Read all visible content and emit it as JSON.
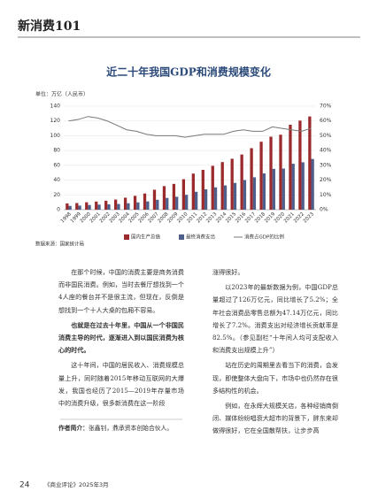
{
  "header": {
    "title": "新消费101"
  },
  "chart_data": {
    "type": "bar",
    "title": "近二十年我国GDP和消费规模变化",
    "y_label": "单位：万亿（人民币）",
    "categories": [
      "1998",
      "1999",
      "2000",
      "2001",
      "2002",
      "2003",
      "2004",
      "2005",
      "2006",
      "2007",
      "2008",
      "2009",
      "2010",
      "2011",
      "2012",
      "2013",
      "2014",
      "2015",
      "2016",
      "2017",
      "2018",
      "2019",
      "2020",
      "2021",
      "2022",
      "2023"
    ],
    "series": [
      {
        "name": "国内生产总值",
        "color": "#9b2a2c",
        "values": [
          8.5,
          9.0,
          10.0,
          11.0,
          12.1,
          13.7,
          16.2,
          18.7,
          21.9,
          27.0,
          31.9,
          34.9,
          41.2,
          48.8,
          53.9,
          59.3,
          64.4,
          68.9,
          74.6,
          83.2,
          91.9,
          98.7,
          101.4,
          114.9,
          120.5,
          126.1
        ]
      },
      {
        "name": "最终消费支出",
        "color": "#4e5f8c",
        "values": [
          5.1,
          5.5,
          6.3,
          6.8,
          7.2,
          7.7,
          8.7,
          9.9,
          11.2,
          13.4,
          15.9,
          17.5,
          20.1,
          24.2,
          27.5,
          30.2,
          32.8,
          36.2,
          40.1,
          43.8,
          49.1,
          55.2,
          55.6,
          62.1,
          64.1,
          68.6
        ]
      },
      {
        "name": "消费占GDP的比例",
        "color": "#777777",
        "axis": "y2",
        "values": [
          60,
          61,
          63,
          62,
          60,
          57,
          54,
          53,
          51,
          50,
          50,
          50,
          49,
          50,
          51,
          51,
          51,
          53,
          54,
          53,
          53,
          56,
          55,
          54,
          53,
          55
        ]
      }
    ],
    "ylim": [
      0,
      140
    ],
    "yticks": [
      0,
      20,
      40,
      60,
      80,
      100,
      120,
      140
    ],
    "y2lim": [
      0,
      70
    ],
    "y2ticks": [
      {
        "value": 0,
        "label": "0%"
      },
      {
        "value": 10,
        "label": "10%"
      },
      {
        "value": 20,
        "label": "20%"
      },
      {
        "value": 30,
        "label": "30%"
      },
      {
        "value": 40,
        "label": "40%"
      },
      {
        "value": 50,
        "label": "50%"
      },
      {
        "value": 60,
        "label": "60%"
      },
      {
        "value": 70,
        "label": "70%"
      }
    ],
    "source": "数据来源：国家统计局"
  },
  "article": {
    "left": [
      "在那个时候，中国的消费主要是商务消费而非国民消费。例如，当时去餐厅想找到一个4人座的餐台并不是很主流，但现在，反倒是想找到一个十人大桌的包厢不容易。",
      "也就是在过去十年里，中国从一个非国民消费主导的时代，逐渐进入到以国民消费为核心的时代。",
      "这十年间，中国的居民收入、消费规模总量上升，同时随着2015年移动互联网的大爆发，我国也经历了2015—2019年存量市场中的消费升级，很多新消费在这一阶段"
    ],
    "author_label": "作者简介：",
    "author": "张鑫钊，鼎承资本创始合伙人。",
    "right": [
      "涨得很好。",
      "以2023年的最新数据为例，中国GDP总量超过了126万亿元，同比增长了5.2%；全年社会消费品零售总额为47.14万亿元，同比增长了7.2%。消费支出对经济增长贡献率是82.5%。（参见副栏“十年间人均可支配收入和消费支出规模上升”）",
      "站在历史的周期里去看当下的消费，会发现，即使整体大盘向下，市场中也仍然存在很多结构性的机会。",
      "例如，在永辉大规模关店，各种经销商倒闭、媒体纷纷唱衰大超市的背景下，胖东来却做得很好，它在全国散帮扶，让步步高"
    ]
  },
  "footer": {
    "page": "24",
    "journal": "《商业评论》2025年3月"
  }
}
